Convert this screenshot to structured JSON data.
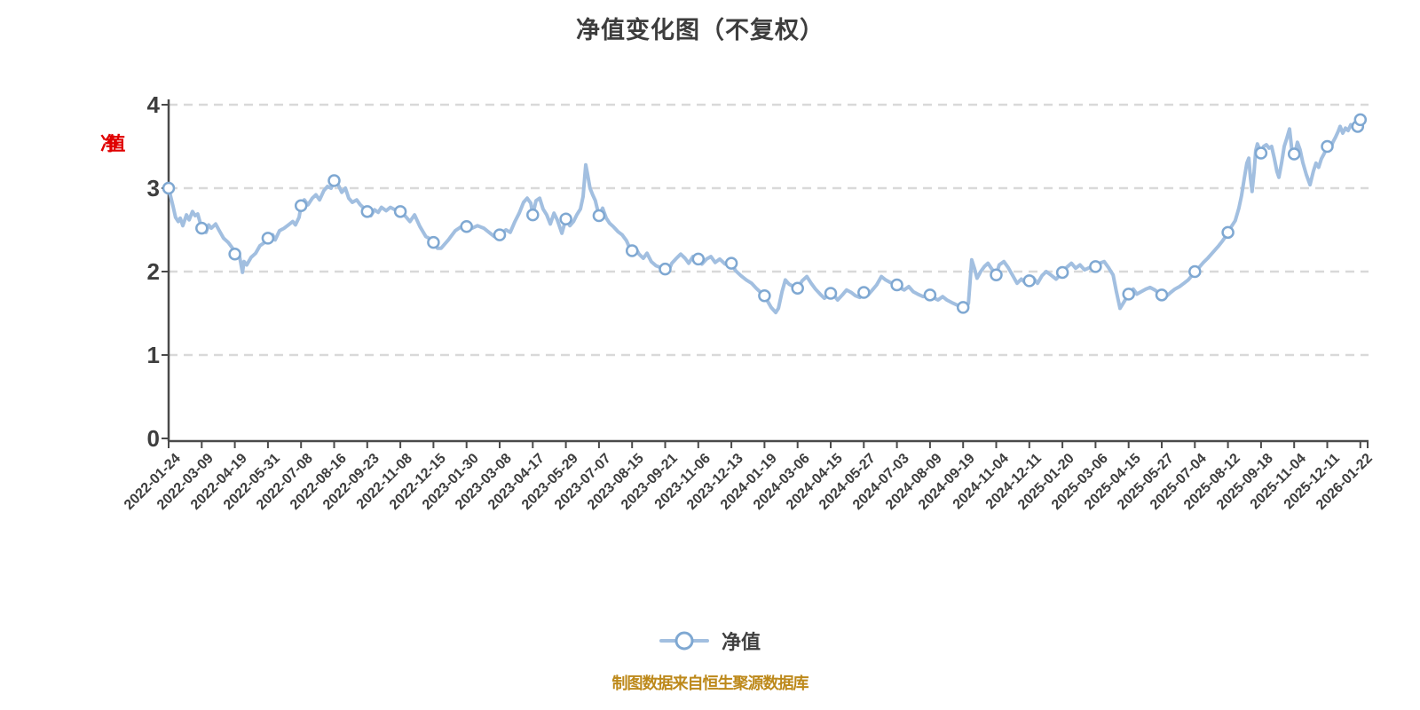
{
  "footer": {
    "source_text": "制图数据来自恒生聚源数据库"
  },
  "colors": {
    "line": "#a2bfe0",
    "marker_fill": "#ffffff",
    "marker_stroke": "#7fa8d2",
    "grid": "#d9d9d9",
    "axis": "#4a4a4a",
    "tick_label": "#3d3d3d",
    "title": "#3d3d3d",
    "y_unit_label": "#e00000",
    "source_text": "#bd891b"
  },
  "chart_data": {
    "type": "line",
    "title": "净值变化图（不复权）",
    "ylabel": "净值",
    "legend": {
      "label": "净值",
      "position": "bottom"
    },
    "grid": "dashed-horizontal",
    "ylim": [
      0,
      4
    ],
    "yticks": [
      0,
      1,
      2,
      3,
      4
    ],
    "categories": [
      "2022-01-24",
      "2022-03-09",
      "2022-04-19",
      "2022-05-31",
      "2022-07-08",
      "2022-08-16",
      "2022-09-23",
      "2022-11-08",
      "2022-12-15",
      "2023-01-30",
      "2023-03-08",
      "2023-04-17",
      "2023-05-29",
      "2023-07-07",
      "2023-08-15",
      "2023-09-21",
      "2023-11-06",
      "2023-12-13",
      "2024-01-19",
      "2024-03-06",
      "2024-04-15",
      "2024-05-27",
      "2024-07-03",
      "2024-08-09",
      "2024-09-19",
      "2024-11-04",
      "2024-12-11",
      "2025-01-20",
      "2025-03-06",
      "2025-04-15",
      "2025-05-27",
      "2025-07-04",
      "2025-08-12",
      "2025-09-18",
      "2025-11-04",
      "2025-12-11",
      "2026-01-22"
    ],
    "markers": [
      3.0,
      2.52,
      2.21,
      2.4,
      2.79,
      3.09,
      2.72,
      2.72,
      2.35,
      2.54,
      2.44,
      2.68,
      2.63,
      2.67,
      2.25,
      2.03,
      2.15,
      2.1,
      1.71,
      1.8,
      1.74,
      1.75,
      1.84,
      1.72,
      1.57,
      1.96,
      1.89,
      1.99,
      2.06,
      1.73,
      1.72,
      2.0,
      2.47,
      3.42,
      3.41,
      3.5,
      3.82
    ],
    "extra_markers": [
      {
        "t": 35.92,
        "v": 3.74
      }
    ],
    "series": [
      [
        0.0,
        3.0
      ],
      [
        0.13,
        2.79
      ],
      [
        0.21,
        2.65
      ],
      [
        0.29,
        2.6
      ],
      [
        0.35,
        2.64
      ],
      [
        0.43,
        2.55
      ],
      [
        0.54,
        2.68
      ],
      [
        0.62,
        2.62
      ],
      [
        0.72,
        2.72
      ],
      [
        0.8,
        2.67
      ],
      [
        0.88,
        2.69
      ],
      [
        1.0,
        2.52
      ],
      [
        1.13,
        2.47
      ],
      [
        1.21,
        2.56
      ],
      [
        1.29,
        2.52
      ],
      [
        1.42,
        2.57
      ],
      [
        1.53,
        2.49
      ],
      [
        1.66,
        2.4
      ],
      [
        1.8,
        2.35
      ],
      [
        1.93,
        2.28
      ],
      [
        2.0,
        2.21
      ],
      [
        2.14,
        2.19
      ],
      [
        2.23,
        1.99
      ],
      [
        2.28,
        2.12
      ],
      [
        2.36,
        2.08
      ],
      [
        2.49,
        2.17
      ],
      [
        2.63,
        2.22
      ],
      [
        2.76,
        2.31
      ],
      [
        2.9,
        2.35
      ],
      [
        3.0,
        2.4
      ],
      [
        3.14,
        2.44
      ],
      [
        3.22,
        2.38
      ],
      [
        3.35,
        2.49
      ],
      [
        3.49,
        2.52
      ],
      [
        3.62,
        2.56
      ],
      [
        3.75,
        2.6
      ],
      [
        3.83,
        2.56
      ],
      [
        3.94,
        2.65
      ],
      [
        4.0,
        2.79
      ],
      [
        4.1,
        2.86
      ],
      [
        4.21,
        2.8
      ],
      [
        4.34,
        2.88
      ],
      [
        4.45,
        2.92
      ],
      [
        4.56,
        2.86
      ],
      [
        4.69,
        2.97
      ],
      [
        4.8,
        3.02
      ],
      [
        4.91,
        3.0
      ],
      [
        5.0,
        3.09
      ],
      [
        5.12,
        3.04
      ],
      [
        5.23,
        2.95
      ],
      [
        5.34,
        3.0
      ],
      [
        5.44,
        2.88
      ],
      [
        5.55,
        2.83
      ],
      [
        5.68,
        2.86
      ],
      [
        5.79,
        2.8
      ],
      [
        5.9,
        2.76
      ],
      [
        6.0,
        2.72
      ],
      [
        6.11,
        2.67
      ],
      [
        6.22,
        2.74
      ],
      [
        6.33,
        2.71
      ],
      [
        6.43,
        2.77
      ],
      [
        6.57,
        2.73
      ],
      [
        6.7,
        2.77
      ],
      [
        6.84,
        2.74
      ],
      [
        7.0,
        2.72
      ],
      [
        7.16,
        2.66
      ],
      [
        7.29,
        2.6
      ],
      [
        7.43,
        2.68
      ],
      [
        7.59,
        2.54
      ],
      [
        7.77,
        2.42
      ],
      [
        7.96,
        2.38
      ],
      [
        8.0,
        2.35
      ],
      [
        8.12,
        2.28
      ],
      [
        8.23,
        2.28
      ],
      [
        8.45,
        2.38
      ],
      [
        8.66,
        2.49
      ],
      [
        8.85,
        2.54
      ],
      [
        8.93,
        2.5
      ],
      [
        9.0,
        2.54
      ],
      [
        9.17,
        2.52
      ],
      [
        9.33,
        2.55
      ],
      [
        9.52,
        2.52
      ],
      [
        9.65,
        2.48
      ],
      [
        9.84,
        2.42
      ],
      [
        10.0,
        2.44
      ],
      [
        10.19,
        2.5
      ],
      [
        10.32,
        2.47
      ],
      [
        10.46,
        2.6
      ],
      [
        10.59,
        2.7
      ],
      [
        10.72,
        2.83
      ],
      [
        10.83,
        2.88
      ],
      [
        10.94,
        2.82
      ],
      [
        11.0,
        2.68
      ],
      [
        11.1,
        2.85
      ],
      [
        11.21,
        2.88
      ],
      [
        11.31,
        2.75
      ],
      [
        11.42,
        2.68
      ],
      [
        11.53,
        2.57
      ],
      [
        11.64,
        2.7
      ],
      [
        11.74,
        2.62
      ],
      [
        11.88,
        2.46
      ],
      [
        12.0,
        2.63
      ],
      [
        12.12,
        2.55
      ],
      [
        12.23,
        2.6
      ],
      [
        12.33,
        2.68
      ],
      [
        12.44,
        2.75
      ],
      [
        12.52,
        2.9
      ],
      [
        12.6,
        3.28
      ],
      [
        12.65,
        3.18
      ],
      [
        12.73,
        3.0
      ],
      [
        12.81,
        2.92
      ],
      [
        12.89,
        2.85
      ],
      [
        13.0,
        2.67
      ],
      [
        13.11,
        2.76
      ],
      [
        13.22,
        2.64
      ],
      [
        13.32,
        2.58
      ],
      [
        13.43,
        2.54
      ],
      [
        13.57,
        2.48
      ],
      [
        13.7,
        2.44
      ],
      [
        13.83,
        2.37
      ],
      [
        13.91,
        2.3
      ],
      [
        14.0,
        2.25
      ],
      [
        14.1,
        2.29
      ],
      [
        14.21,
        2.21
      ],
      [
        14.34,
        2.16
      ],
      [
        14.45,
        2.22
      ],
      [
        14.58,
        2.12
      ],
      [
        14.72,
        2.07
      ],
      [
        14.85,
        2.05
      ],
      [
        15.0,
        2.03
      ],
      [
        15.09,
        2.0
      ],
      [
        15.2,
        2.1
      ],
      [
        15.34,
        2.16
      ],
      [
        15.47,
        2.21
      ],
      [
        15.6,
        2.16
      ],
      [
        15.71,
        2.1
      ],
      [
        15.84,
        2.18
      ],
      [
        16.0,
        2.15
      ],
      [
        16.11,
        2.09
      ],
      [
        16.25,
        2.15
      ],
      [
        16.38,
        2.18
      ],
      [
        16.51,
        2.11
      ],
      [
        16.65,
        2.15
      ],
      [
        16.81,
        2.09
      ],
      [
        17.0,
        2.1
      ],
      [
        17.13,
        2.01
      ],
      [
        17.29,
        1.95
      ],
      [
        17.45,
        1.9
      ],
      [
        17.61,
        1.86
      ],
      [
        17.75,
        1.8
      ],
      [
        17.86,
        1.76
      ],
      [
        18.0,
        1.71
      ],
      [
        18.1,
        1.64
      ],
      [
        18.2,
        1.57
      ],
      [
        18.34,
        1.51
      ],
      [
        18.42,
        1.56
      ],
      [
        18.53,
        1.76
      ],
      [
        18.63,
        1.9
      ],
      [
        18.74,
        1.85
      ],
      [
        18.87,
        1.82
      ],
      [
        19.0,
        1.8
      ],
      [
        19.14,
        1.89
      ],
      [
        19.28,
        1.94
      ],
      [
        19.41,
        1.86
      ],
      [
        19.54,
        1.79
      ],
      [
        19.68,
        1.73
      ],
      [
        19.81,
        1.68
      ],
      [
        20.0,
        1.74
      ],
      [
        20.11,
        1.71
      ],
      [
        20.21,
        1.66
      ],
      [
        20.35,
        1.72
      ],
      [
        20.48,
        1.78
      ],
      [
        20.62,
        1.75
      ],
      [
        20.75,
        1.71
      ],
      [
        20.88,
        1.69
      ],
      [
        21.0,
        1.75
      ],
      [
        21.13,
        1.72
      ],
      [
        21.26,
        1.78
      ],
      [
        21.39,
        1.84
      ],
      [
        21.53,
        1.94
      ],
      [
        21.66,
        1.9
      ],
      [
        21.8,
        1.87
      ],
      [
        22.0,
        1.84
      ],
      [
        22.12,
        1.8
      ],
      [
        22.22,
        1.78
      ],
      [
        22.36,
        1.82
      ],
      [
        22.49,
        1.76
      ],
      [
        22.63,
        1.73
      ],
      [
        22.79,
        1.7
      ],
      [
        23.0,
        1.72
      ],
      [
        23.14,
        1.68
      ],
      [
        23.24,
        1.66
      ],
      [
        23.38,
        1.7
      ],
      [
        23.51,
        1.66
      ],
      [
        23.65,
        1.63
      ],
      [
        23.81,
        1.6
      ],
      [
        24.0,
        1.57
      ],
      [
        24.08,
        1.55
      ],
      [
        24.16,
        1.62
      ],
      [
        24.26,
        2.14
      ],
      [
        24.34,
        2.04
      ],
      [
        24.42,
        1.92
      ],
      [
        24.53,
        2.0
      ],
      [
        24.64,
        2.06
      ],
      [
        24.75,
        2.1
      ],
      [
        24.85,
        2.04
      ],
      [
        25.0,
        1.96
      ],
      [
        25.09,
        2.08
      ],
      [
        25.23,
        2.12
      ],
      [
        25.36,
        2.05
      ],
      [
        25.5,
        1.95
      ],
      [
        25.63,
        1.86
      ],
      [
        25.76,
        1.91
      ],
      [
        25.9,
        1.86
      ],
      [
        26.0,
        1.89
      ],
      [
        26.11,
        1.93
      ],
      [
        26.25,
        1.86
      ],
      [
        26.38,
        1.95
      ],
      [
        26.51,
        2.0
      ],
      [
        26.65,
        1.96
      ],
      [
        26.81,
        1.91
      ],
      [
        27.0,
        1.99
      ],
      [
        27.13,
        2.05
      ],
      [
        27.27,
        2.1
      ],
      [
        27.4,
        2.04
      ],
      [
        27.53,
        2.08
      ],
      [
        27.67,
        2.02
      ],
      [
        27.83,
        2.05
      ],
      [
        28.0,
        2.06
      ],
      [
        28.12,
        2.1
      ],
      [
        28.26,
        2.12
      ],
      [
        28.39,
        2.05
      ],
      [
        28.53,
        1.96
      ],
      [
        28.63,
        1.76
      ],
      [
        28.74,
        1.56
      ],
      [
        28.85,
        1.63
      ],
      [
        29.0,
        1.73
      ],
      [
        29.14,
        1.79
      ],
      [
        29.25,
        1.73
      ],
      [
        29.38,
        1.76
      ],
      [
        29.52,
        1.79
      ],
      [
        29.65,
        1.81
      ],
      [
        29.79,
        1.78
      ],
      [
        29.89,
        1.75
      ],
      [
        30.0,
        1.72
      ],
      [
        30.13,
        1.7
      ],
      [
        30.27,
        1.75
      ],
      [
        30.4,
        1.79
      ],
      [
        30.54,
        1.82
      ],
      [
        30.67,
        1.86
      ],
      [
        30.8,
        1.9
      ],
      [
        30.91,
        1.95
      ],
      [
        31.0,
        2.0
      ],
      [
        31.13,
        2.05
      ],
      [
        31.26,
        2.11
      ],
      [
        31.39,
        2.16
      ],
      [
        31.5,
        2.21
      ],
      [
        31.61,
        2.26
      ],
      [
        31.72,
        2.31
      ],
      [
        31.82,
        2.36
      ],
      [
        31.93,
        2.42
      ],
      [
        32.0,
        2.47
      ],
      [
        32.12,
        2.55
      ],
      [
        32.22,
        2.61
      ],
      [
        32.33,
        2.76
      ],
      [
        32.41,
        2.91
      ],
      [
        32.49,
        3.11
      ],
      [
        32.57,
        3.3
      ],
      [
        32.63,
        3.36
      ],
      [
        32.68,
        3.12
      ],
      [
        32.73,
        2.96
      ],
      [
        32.79,
        3.2
      ],
      [
        32.84,
        3.45
      ],
      [
        32.89,
        3.53
      ],
      [
        33.0,
        3.42
      ],
      [
        33.08,
        3.5
      ],
      [
        33.16,
        3.52
      ],
      [
        33.24,
        3.48
      ],
      [
        33.32,
        3.5
      ],
      [
        33.4,
        3.36
      ],
      [
        33.48,
        3.2
      ],
      [
        33.54,
        3.13
      ],
      [
        33.62,
        3.3
      ],
      [
        33.7,
        3.5
      ],
      [
        33.78,
        3.6
      ],
      [
        33.86,
        3.71
      ],
      [
        33.94,
        3.42
      ],
      [
        34.02,
        3.41
      ],
      [
        34.1,
        3.55
      ],
      [
        34.18,
        3.46
      ],
      [
        34.26,
        3.31
      ],
      [
        34.37,
        3.16
      ],
      [
        34.48,
        3.04
      ],
      [
        34.58,
        3.2
      ],
      [
        34.66,
        3.3
      ],
      [
        34.74,
        3.25
      ],
      [
        34.82,
        3.35
      ],
      [
        34.9,
        3.41
      ],
      [
        35.01,
        3.5
      ],
      [
        35.09,
        3.46
      ],
      [
        35.17,
        3.55
      ],
      [
        35.25,
        3.61
      ],
      [
        35.33,
        3.68
      ],
      [
        35.39,
        3.74
      ],
      [
        35.47,
        3.66
      ],
      [
        35.55,
        3.72
      ],
      [
        35.63,
        3.69
      ],
      [
        35.71,
        3.76
      ],
      [
        35.79,
        3.72
      ],
      [
        35.87,
        3.78
      ],
      [
        36.0,
        3.82
      ]
    ]
  }
}
